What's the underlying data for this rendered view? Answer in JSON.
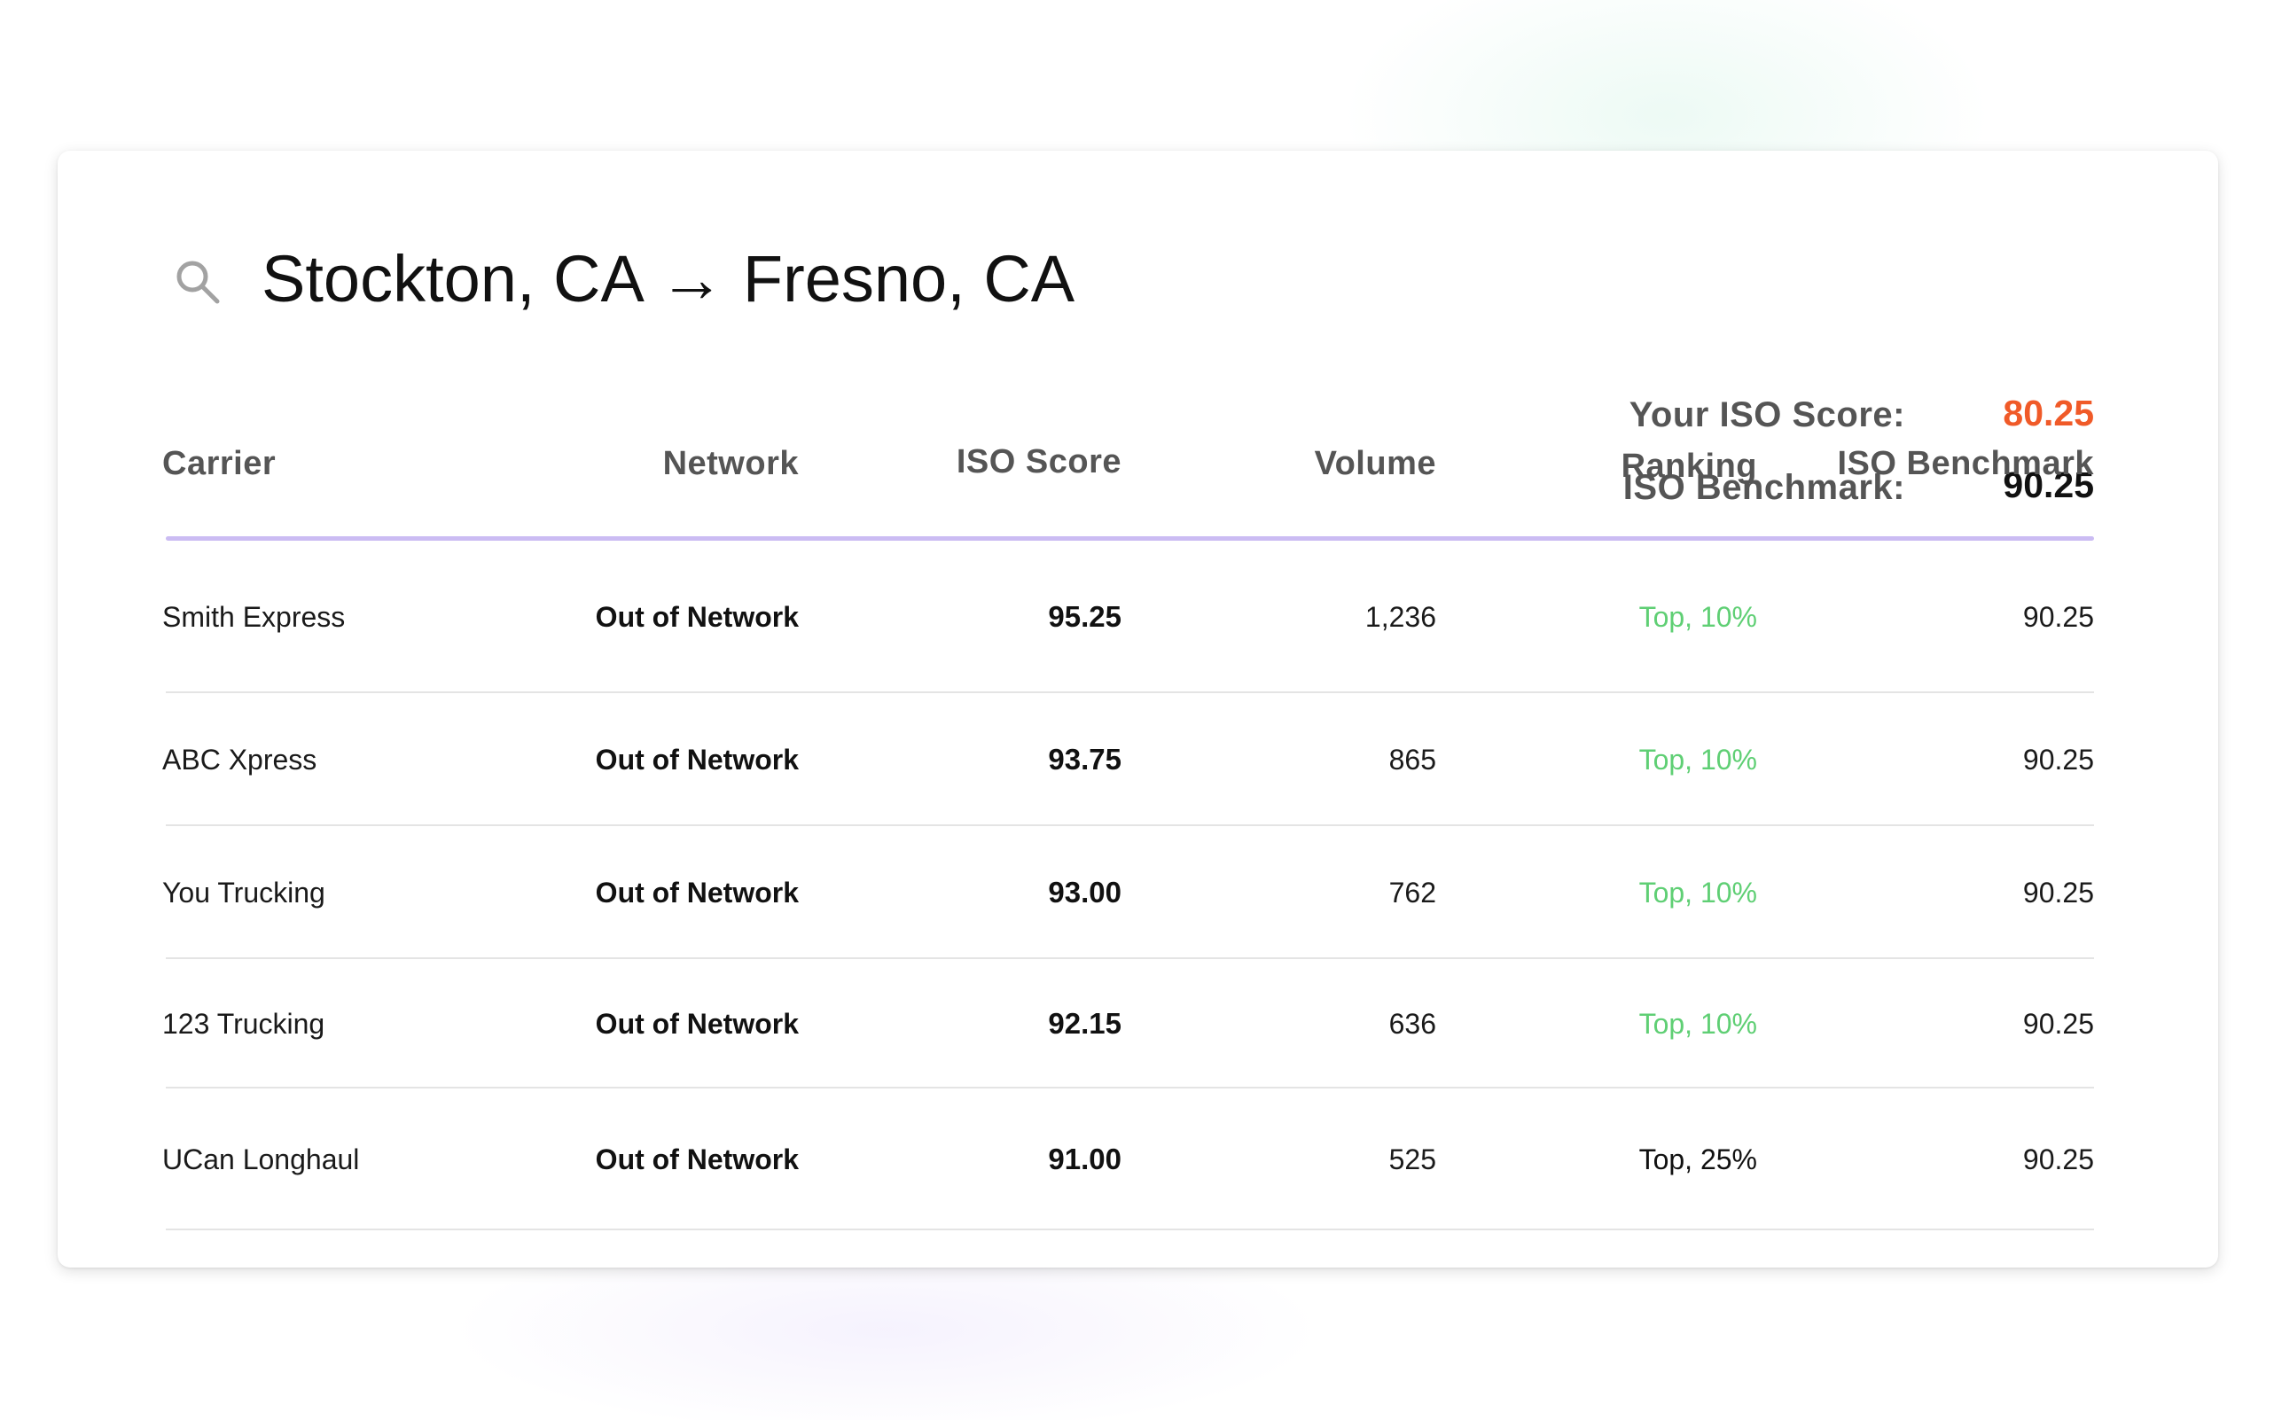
{
  "search": {
    "icon": "search-icon",
    "origin": "Stockton, CA",
    "arrow": "→",
    "destination": "Fresno, CA",
    "route": "Stockton, CA → Fresno, CA"
  },
  "summary": {
    "iso_score_label": "Your ISO Score:",
    "iso_score_value": "80.25",
    "benchmark_label": "ISO Benchmark:",
    "benchmark_value": "90.25"
  },
  "table": {
    "columns": [
      "Carrier",
      "Network",
      "ISO Score",
      "Volume",
      "Ranking",
      "ISO Benchmark"
    ],
    "rows": [
      {
        "carrier": "Smith Express",
        "network": "Out of Network",
        "iso_score": "95.25",
        "volume": "1,236",
        "ranking": "Top, 10%",
        "benchmark": "90.25"
      },
      {
        "carrier": "ABC Xpress",
        "network": "Out of Network",
        "iso_score": "93.75",
        "volume": "865",
        "ranking": "Top, 10%",
        "benchmark": "90.25"
      },
      {
        "carrier": "You Trucking",
        "network": "Out of Network",
        "iso_score": "93.00",
        "volume": "762",
        "ranking": "Top, 10%",
        "benchmark": "90.25"
      },
      {
        "carrier": "123 Trucking",
        "network": "Out of Network",
        "iso_score": "92.15",
        "volume": "636",
        "ranking": "Top, 10%",
        "benchmark": "90.25"
      },
      {
        "carrier": "UCan Longhaul",
        "network": "Out of Network",
        "iso_score": "91.00",
        "volume": "525",
        "ranking": "Top, 25%",
        "benchmark": "90.25"
      }
    ]
  },
  "colors": {
    "score_accent": "#f05a28",
    "ranking_top10": "#5fcf74",
    "ranking_default": "#111111",
    "header_rule": "#cbbcf3",
    "header_text": "#555555"
  }
}
